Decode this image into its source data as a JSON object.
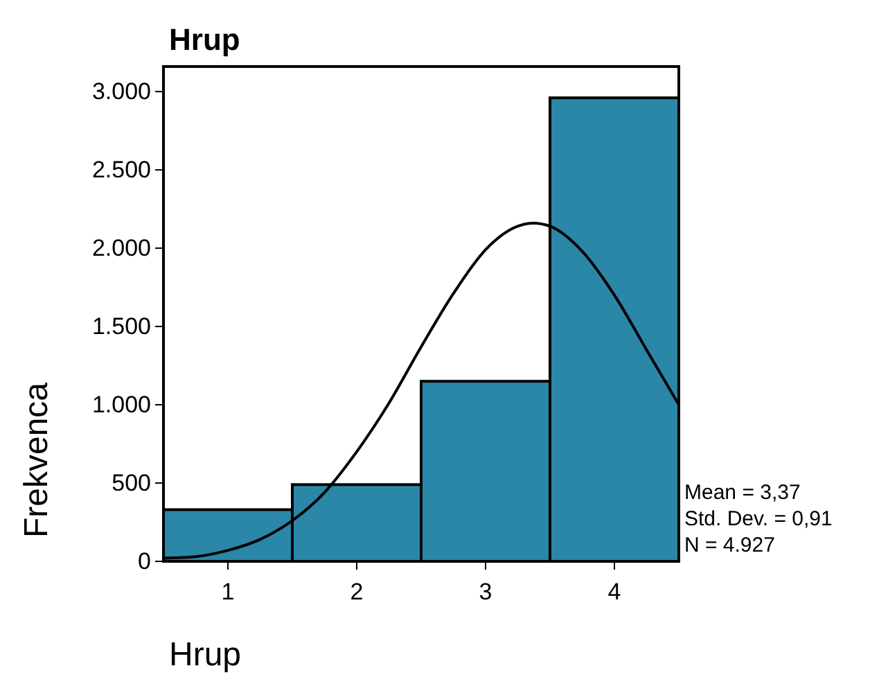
{
  "chart_data": {
    "type": "histogram",
    "title": "Hrup",
    "xlabel": "Hrup",
    "ylabel": "Frekvenca",
    "bins": [
      0.5,
      1.5,
      2.5,
      3.5,
      4.5
    ],
    "values": [
      330,
      490,
      1150,
      2960
    ],
    "color": "#2a87a8",
    "series": [
      {
        "type": "line",
        "color": "#000000",
        "x": [
          0.5,
          0.75,
          1,
          1.25,
          1.5,
          1.75,
          2,
          2.25,
          2.5,
          2.75,
          3,
          3.25,
          3.37,
          3.5,
          3.75,
          4,
          4.25,
          4.5
        ],
        "values": [
          20,
          30,
          70,
          140,
          260,
          440,
          700,
          1010,
          1370,
          1710,
          1990,
          2140,
          2160,
          2140,
          1980,
          1700,
          1350,
          1000
        ]
      }
    ],
    "xlim": [
      0.5,
      4.5
    ],
    "xticks": [
      1,
      2,
      3,
      4
    ],
    "ylim": [
      0,
      3160
    ],
    "yticks": [
      {
        "value": 0,
        "label": "0"
      },
      {
        "value": 500,
        "label": "500"
      },
      {
        "value": 1000,
        "label": "1.000"
      },
      {
        "value": 1500,
        "label": "1.500"
      },
      {
        "value": 2000,
        "label": "2.000"
      },
      {
        "value": 2500,
        "label": "2.500"
      },
      {
        "value": 3000,
        "label": "3.000"
      }
    ],
    "annotations": [
      "Mean = 3,37",
      "Std. Dev. = 0,91",
      "N = 4.927"
    ]
  }
}
